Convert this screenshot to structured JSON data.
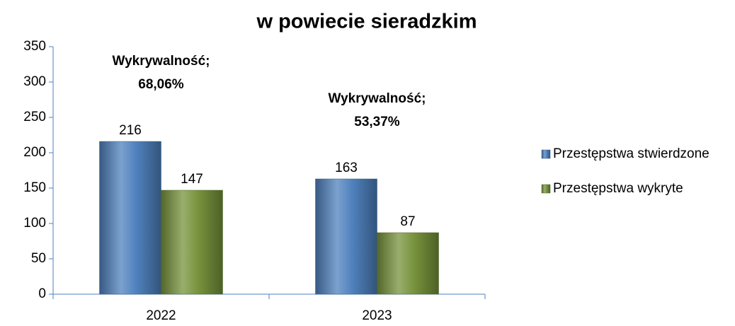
{
  "chart_data": {
    "type": "bar",
    "title": "w powiecie sieradzkim",
    "categories": [
      "2022",
      "2023"
    ],
    "series": [
      {
        "name": "Przestępstwa stwierdzone",
        "color": "#4f81bd",
        "values": [
          216,
          163
        ]
      },
      {
        "name": "Przestępstwa wykryte",
        "color": "#77933c",
        "values": [
          147,
          87
        ]
      }
    ],
    "annotations": [
      {
        "lines": [
          "Wykrywalność;",
          "68,06%"
        ]
      },
      {
        "lines": [
          "Wykrywalność;",
          "53,37%"
        ]
      }
    ],
    "ylim": [
      0,
      350
    ],
    "yticks": [
      0,
      50,
      100,
      150,
      200,
      250,
      300,
      350
    ],
    "grid": false,
    "legend": "right"
  }
}
